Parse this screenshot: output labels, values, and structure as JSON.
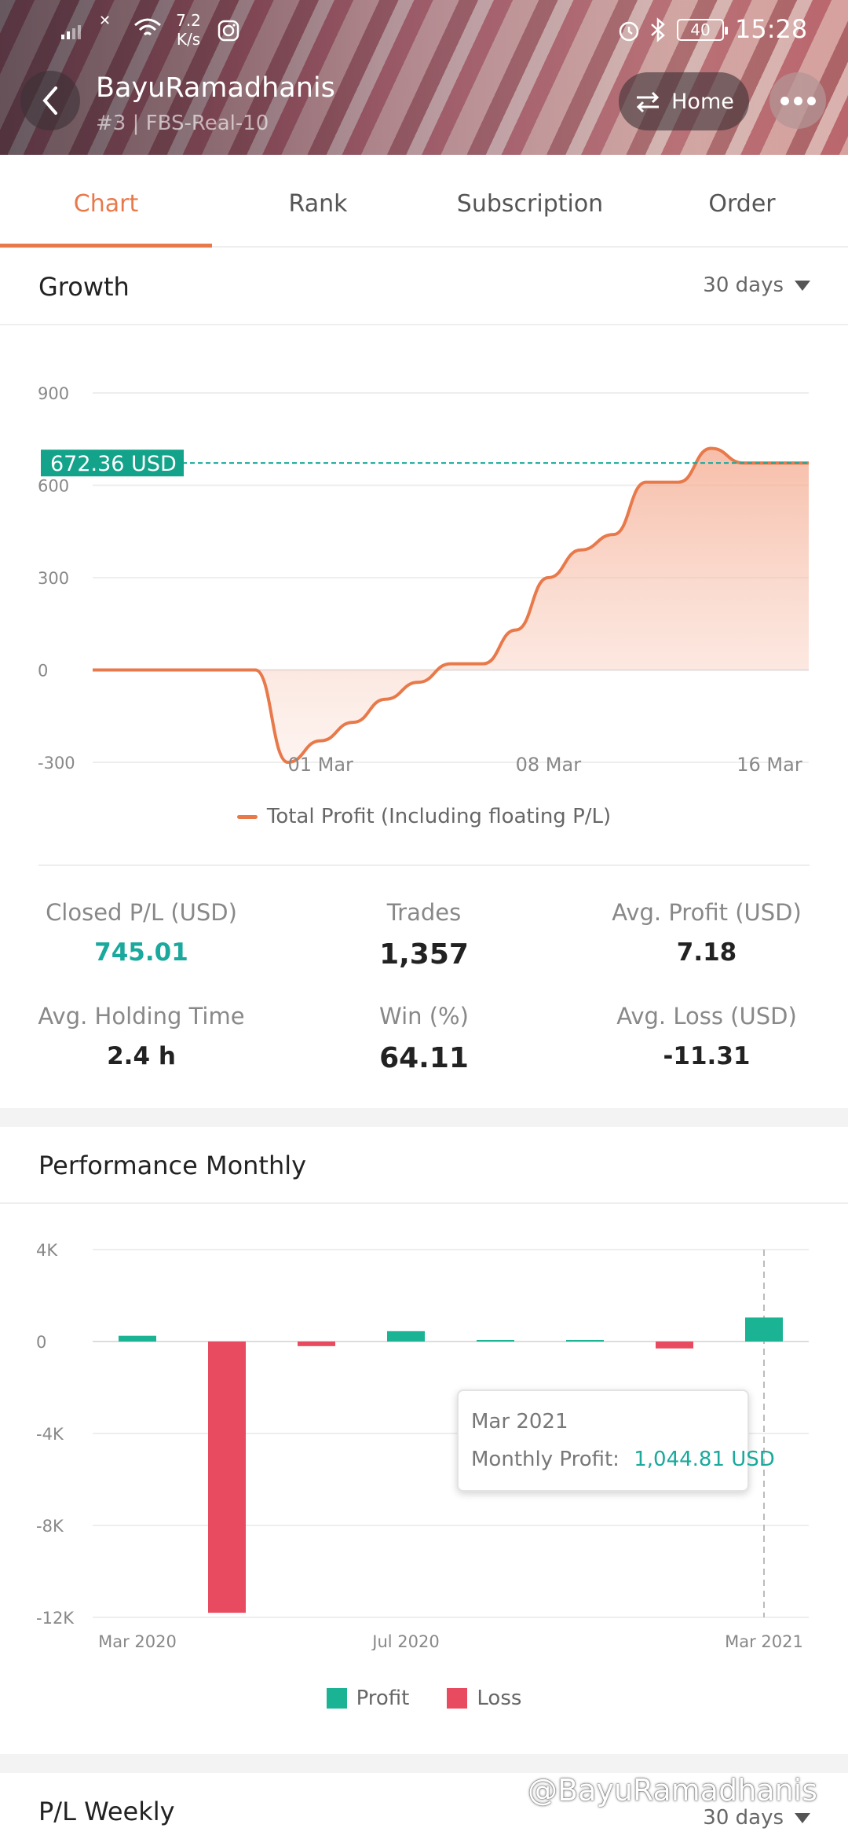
{
  "status_bar": {
    "network_speed_top": "7.2",
    "network_speed_bottom": "K/s",
    "battery": "40",
    "time": "15:28"
  },
  "header": {
    "title": "BayuRamadhanis",
    "subtitle": "#3 | FBS-Real-10",
    "home_label": "Home"
  },
  "tabs": [
    {
      "label": "Chart",
      "active": true
    },
    {
      "label": "Rank",
      "active": false
    },
    {
      "label": "Subscription",
      "active": false
    },
    {
      "label": "Order",
      "active": false
    }
  ],
  "growth": {
    "title": "Growth",
    "range_label": "30 days",
    "current_value_label": "672.36 USD",
    "chart_data": {
      "type": "area",
      "y_ticks": [
        "900",
        "600",
        "300",
        "0",
        "-300"
      ],
      "x_ticks": [
        "01 Mar",
        "08 Mar",
        "16 Mar"
      ],
      "ylim": [
        -300,
        900
      ],
      "series": [
        {
          "name": "Total Profit (Including floating P/L)",
          "color": "#e8794a",
          "x": [
            "22 Feb",
            "23 Feb",
            "24 Feb",
            "25 Feb",
            "26 Feb",
            "27 Feb",
            "28 Feb",
            "01 Mar",
            "02 Mar",
            "03 Mar",
            "04 Mar",
            "05 Mar",
            "06 Mar",
            "07 Mar",
            "08 Mar",
            "09 Mar",
            "10 Mar",
            "11 Mar",
            "12 Mar",
            "13 Mar",
            "14 Mar",
            "15 Mar",
            "16 Mar"
          ],
          "values": [
            0,
            0,
            0,
            0,
            0,
            0,
            -300,
            -230,
            -170,
            -95,
            -40,
            20,
            20,
            130,
            300,
            390,
            440,
            610,
            610,
            720,
            672.36,
            672.36,
            672.36
          ]
        }
      ],
      "reference_value": 672.36
    },
    "legend_label": "Total Profit (Including floating P/L)"
  },
  "stats": {
    "closed_pl_label": "Closed P/L (USD)",
    "closed_pl_value": "745.01",
    "trades_label": "Trades",
    "trades_value": "1,357",
    "avg_profit_label": "Avg. Profit (USD)",
    "avg_profit_value": "7.18",
    "avg_holding_label": "Avg. Holding Time",
    "avg_holding_value": "2.4 h",
    "win_label": "Win (%)",
    "win_value": "64.11",
    "avg_loss_label": "Avg. Loss (USD)",
    "avg_loss_value": "-11.31"
  },
  "performance": {
    "title": "Performance Monthly",
    "chart_data": {
      "type": "bar",
      "y_ticks": [
        "4K",
        "0",
        "-4K",
        "-8K",
        "-12K"
      ],
      "x_ticks": [
        "Mar 2020",
        "Jul 2020",
        "Mar 2021"
      ],
      "ylim": [
        -12000,
        4000
      ],
      "values": [
        250,
        -11800,
        -200,
        450,
        60,
        30,
        -300,
        1044.81
      ],
      "colors": {
        "profit": "#1ab394",
        "loss": "#e84a5f"
      }
    },
    "tooltip": {
      "month": "Mar 2021",
      "label": "Monthly Profit:",
      "value": "1,044.81 USD"
    },
    "legend": {
      "profit": "Profit",
      "loss": "Loss"
    }
  },
  "weekly": {
    "title": "P/L Weekly",
    "range_label": "30 days"
  },
  "watermark": "@BayuRamadhanis"
}
